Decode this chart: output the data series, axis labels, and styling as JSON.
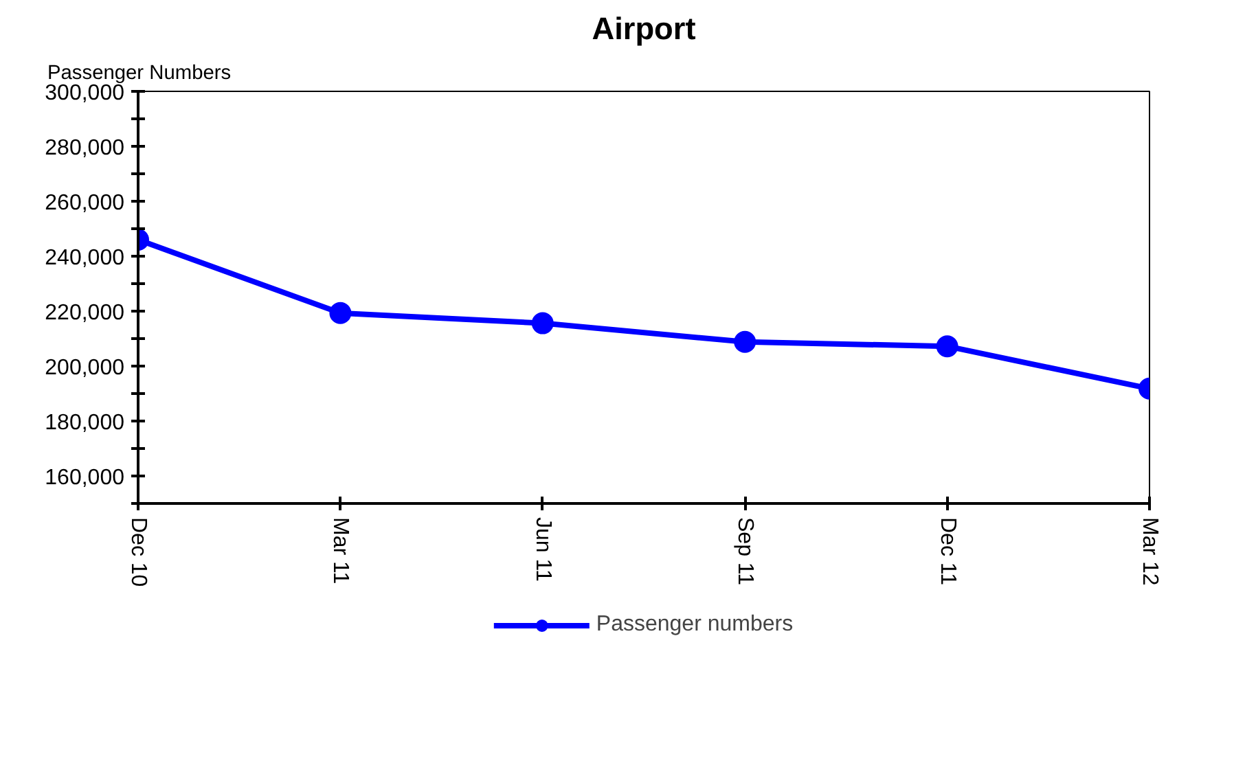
{
  "chart_data": {
    "type": "line",
    "title": "Airport",
    "ylabel": "Passenger Numbers",
    "categories": [
      "Dec 10",
      "Mar 11",
      "Jun 11",
      "Sep 11",
      "Dec 11",
      "Mar 12"
    ],
    "series": [
      {
        "name": "Passenger numbers",
        "color": "#0000ff",
        "values": [
          246000,
          219300,
          215600,
          208800,
          207200,
          191800
        ]
      }
    ],
    "ylim": [
      150000,
      300000
    ],
    "yticks": [
      {
        "value": 150000,
        "label": null
      },
      {
        "value": 160000,
        "label": "160,000"
      },
      {
        "value": 170000,
        "label": null
      },
      {
        "value": 180000,
        "label": "180,000"
      },
      {
        "value": 190000,
        "label": null
      },
      {
        "value": 200000,
        "label": "200,000"
      },
      {
        "value": 210000,
        "label": null
      },
      {
        "value": 220000,
        "label": "220,000"
      },
      {
        "value": 230000,
        "label": null
      },
      {
        "value": 240000,
        "label": "240,000"
      },
      {
        "value": 250000,
        "label": null
      },
      {
        "value": 260000,
        "label": "260,000"
      },
      {
        "value": 270000,
        "label": null
      },
      {
        "value": 280000,
        "label": "280,000"
      },
      {
        "value": 290000,
        "label": null
      },
      {
        "value": 300000,
        "label": "300,000"
      }
    ],
    "grid": false,
    "legend": "bottom",
    "marker": "circle",
    "line_style": "solid"
  }
}
